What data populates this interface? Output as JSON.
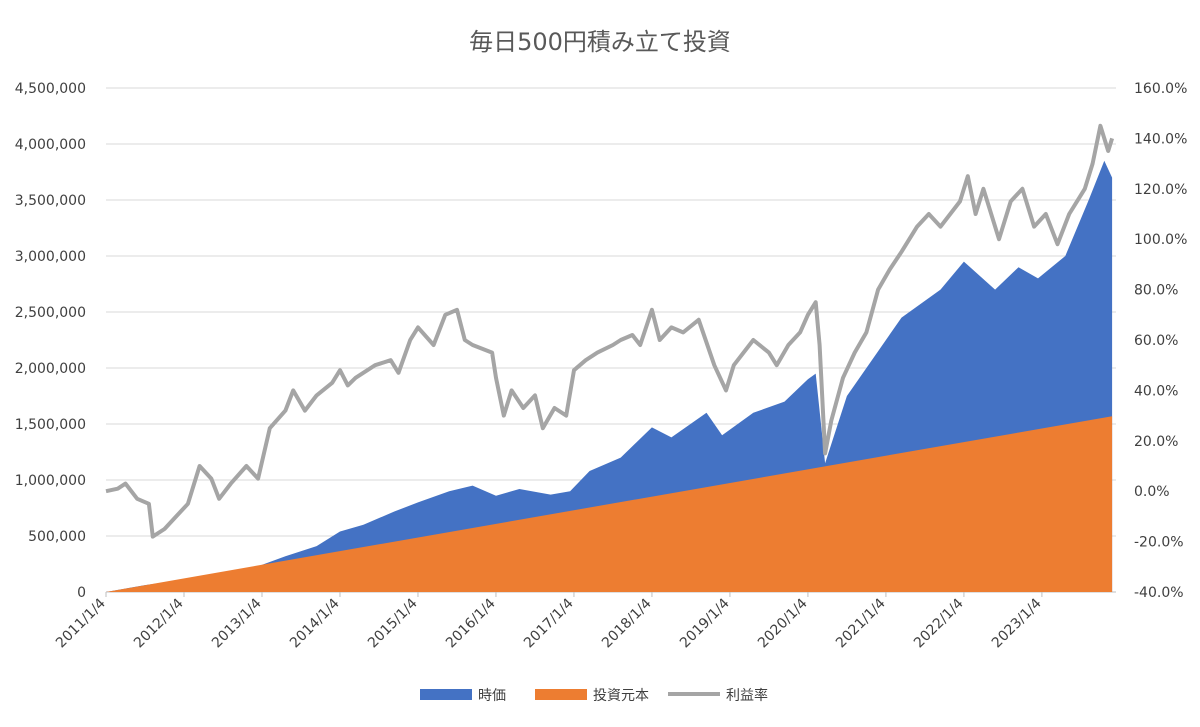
{
  "chart_data": {
    "type": "area",
    "title": "毎日500円積み立て投資",
    "x_ticks": [
      "2011/1/4",
      "2012/1/4",
      "2013/1/4",
      "2014/1/4",
      "2015/1/4",
      "2016/1/4",
      "2017/1/4",
      "2018/1/4",
      "2019/1/4",
      "2020/1/4",
      "2021/1/4",
      "2022/1/4",
      "2023/1/4"
    ],
    "y_left": {
      "ticks": [
        "0",
        "500,000",
        "1,000,000",
        "1,500,000",
        "2,000,000",
        "2,500,000",
        "3,000,000",
        "3,500,000",
        "4,000,000",
        "4,500,000"
      ],
      "range": [
        0,
        4500000
      ]
    },
    "y_right": {
      "ticks": [
        "-40.0%",
        "-20.0%",
        "0.0%",
        "20.0%",
        "40.0%",
        "60.0%",
        "80.0%",
        "100.0%",
        "120.0%",
        "140.0%",
        "160.0%"
      ],
      "range": [
        -40,
        160
      ]
    },
    "legend_position": "bottom",
    "grid": "horizontal",
    "series": [
      {
        "name": "時価",
        "kind": "area",
        "axis": "left",
        "color": "#4472C4",
        "points": [
          [
            2011.0,
            0
          ],
          [
            2011.5,
            62000
          ],
          [
            2012.0,
            110000
          ],
          [
            2012.5,
            155000
          ],
          [
            2012.95,
            230000
          ],
          [
            2013.3,
            320000
          ],
          [
            2013.7,
            410000
          ],
          [
            2014.0,
            540000
          ],
          [
            2014.3,
            600000
          ],
          [
            2014.7,
            720000
          ],
          [
            2015.0,
            800000
          ],
          [
            2015.4,
            900000
          ],
          [
            2015.7,
            950000
          ],
          [
            2016.0,
            860000
          ],
          [
            2016.3,
            920000
          ],
          [
            2016.7,
            870000
          ],
          [
            2016.95,
            900000
          ],
          [
            2017.2,
            1080000
          ],
          [
            2017.6,
            1200000
          ],
          [
            2018.0,
            1470000
          ],
          [
            2018.25,
            1380000
          ],
          [
            2018.7,
            1600000
          ],
          [
            2018.9,
            1400000
          ],
          [
            2019.3,
            1600000
          ],
          [
            2019.7,
            1700000
          ],
          [
            2020.0,
            1900000
          ],
          [
            2020.1,
            1950000
          ],
          [
            2020.22,
            1150000
          ],
          [
            2020.5,
            1750000
          ],
          [
            2020.9,
            2150000
          ],
          [
            2021.2,
            2450000
          ],
          [
            2021.7,
            2700000
          ],
          [
            2022.0,
            2950000
          ],
          [
            2022.4,
            2700000
          ],
          [
            2022.7,
            2900000
          ],
          [
            2022.95,
            2800000
          ],
          [
            2023.3,
            3000000
          ],
          [
            2023.6,
            3500000
          ],
          [
            2023.8,
            3850000
          ],
          [
            2023.9,
            3700000
          ]
        ]
      },
      {
        "name": "投資元本",
        "kind": "area",
        "axis": "left",
        "color": "#ED7D31",
        "points": [
          [
            2011.0,
            0
          ],
          [
            2023.9,
            1570000
          ]
        ]
      },
      {
        "name": "利益率",
        "kind": "line",
        "axis": "right",
        "color": "#A5A5A5",
        "points": [
          [
            2011.0,
            0
          ],
          [
            2011.15,
            1
          ],
          [
            2011.25,
            3
          ],
          [
            2011.4,
            -3
          ],
          [
            2011.55,
            -5
          ],
          [
            2011.6,
            -18
          ],
          [
            2011.75,
            -15
          ],
          [
            2011.9,
            -10
          ],
          [
            2012.05,
            -5
          ],
          [
            2012.2,
            10
          ],
          [
            2012.35,
            5
          ],
          [
            2012.45,
            -3
          ],
          [
            2012.6,
            3
          ],
          [
            2012.8,
            10
          ],
          [
            2012.95,
            5
          ],
          [
            2013.1,
            25
          ],
          [
            2013.3,
            32
          ],
          [
            2013.4,
            40
          ],
          [
            2013.55,
            32
          ],
          [
            2013.7,
            38
          ],
          [
            2013.9,
            43
          ],
          [
            2014.0,
            48
          ],
          [
            2014.1,
            42
          ],
          [
            2014.2,
            45
          ],
          [
            2014.45,
            50
          ],
          [
            2014.65,
            52
          ],
          [
            2014.75,
            47
          ],
          [
            2014.9,
            60
          ],
          [
            2015.0,
            65
          ],
          [
            2015.2,
            58
          ],
          [
            2015.35,
            70
          ],
          [
            2015.5,
            72
          ],
          [
            2015.6,
            60
          ],
          [
            2015.7,
            58
          ],
          [
            2015.95,
            55
          ],
          [
            2016.0,
            45
          ],
          [
            2016.1,
            30
          ],
          [
            2016.2,
            40
          ],
          [
            2016.35,
            33
          ],
          [
            2016.5,
            38
          ],
          [
            2016.6,
            25
          ],
          [
            2016.75,
            33
          ],
          [
            2016.9,
            30
          ],
          [
            2017.0,
            48
          ],
          [
            2017.15,
            52
          ],
          [
            2017.3,
            55
          ],
          [
            2017.5,
            58
          ],
          [
            2017.6,
            60
          ],
          [
            2017.75,
            62
          ],
          [
            2017.85,
            58
          ],
          [
            2018.0,
            72
          ],
          [
            2018.1,
            60
          ],
          [
            2018.25,
            65
          ],
          [
            2018.4,
            63
          ],
          [
            2018.6,
            68
          ],
          [
            2018.8,
            50
          ],
          [
            2018.95,
            40
          ],
          [
            2019.05,
            50
          ],
          [
            2019.3,
            60
          ],
          [
            2019.5,
            55
          ],
          [
            2019.6,
            50
          ],
          [
            2019.75,
            58
          ],
          [
            2019.9,
            63
          ],
          [
            2020.0,
            70
          ],
          [
            2020.1,
            75
          ],
          [
            2020.15,
            58
          ],
          [
            2020.22,
            15
          ],
          [
            2020.3,
            28
          ],
          [
            2020.45,
            45
          ],
          [
            2020.6,
            55
          ],
          [
            2020.75,
            63
          ],
          [
            2020.9,
            80
          ],
          [
            2021.05,
            88
          ],
          [
            2021.2,
            95
          ],
          [
            2021.4,
            105
          ],
          [
            2021.55,
            110
          ],
          [
            2021.7,
            105
          ],
          [
            2021.95,
            115
          ],
          [
            2022.05,
            125
          ],
          [
            2022.15,
            110
          ],
          [
            2022.25,
            120
          ],
          [
            2022.45,
            100
          ],
          [
            2022.6,
            115
          ],
          [
            2022.75,
            120
          ],
          [
            2022.9,
            105
          ],
          [
            2023.05,
            110
          ],
          [
            2023.2,
            98
          ],
          [
            2023.35,
            110
          ],
          [
            2023.55,
            120
          ],
          [
            2023.65,
            130
          ],
          [
            2023.75,
            145
          ],
          [
            2023.85,
            135
          ],
          [
            2023.9,
            140
          ]
        ]
      }
    ]
  }
}
